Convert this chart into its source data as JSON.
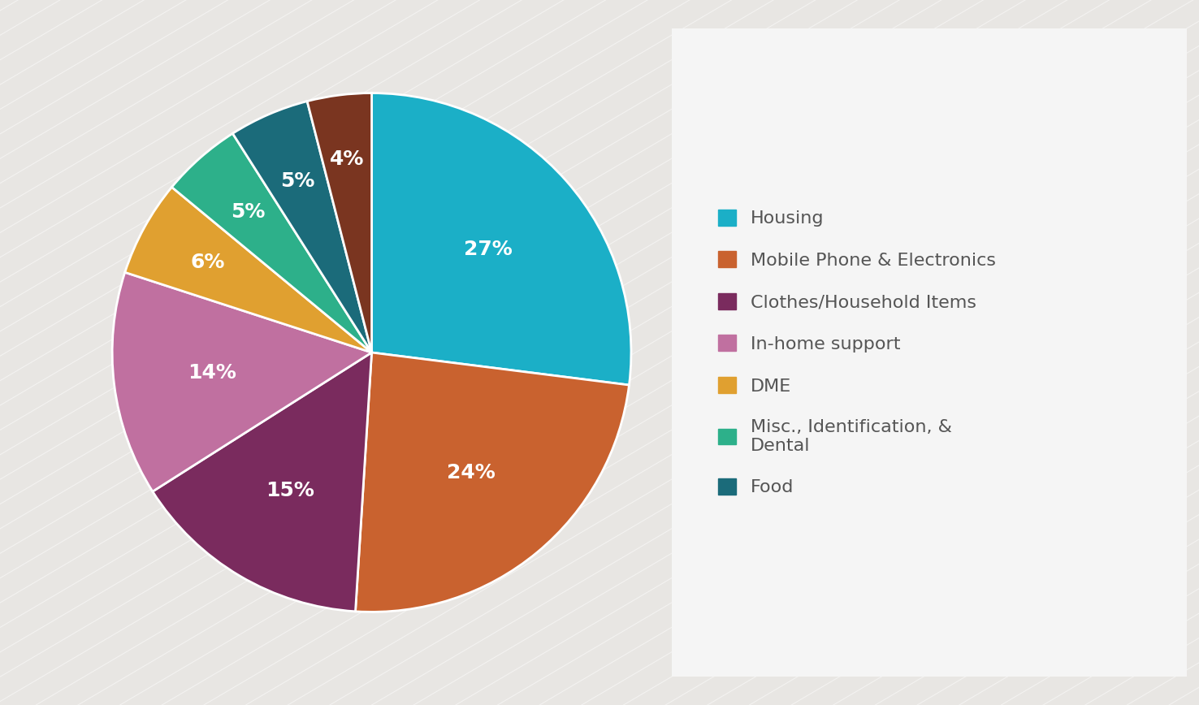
{
  "percentages": [
    27,
    24,
    15,
    14,
    6,
    5,
    5,
    4
  ],
  "colors": [
    "#1BAFC7",
    "#C9622F",
    "#7A2B5E",
    "#C070A0",
    "#E0A030",
    "#2DB08A",
    "#1B6B7A",
    "#7A3520"
  ],
  "legend_labels": [
    "Housing",
    "Mobile Phone & Electronics",
    "Clothes/Household Items",
    "In-home support",
    "DME",
    "Misc., Identification, &\nDental",
    "Food"
  ],
  "legend_colors": [
    "#1BAFC7",
    "#C9622F",
    "#7A2B5E",
    "#C070A0",
    "#E0A030",
    "#2DB08A",
    "#1B6B7A"
  ],
  "background_color": "#E8E6E3",
  "panel_color": "#F5F5F5",
  "text_color": "#FFFFFF",
  "label_fontsize": 18,
  "legend_fontsize": 16,
  "legend_text_color": "#555555"
}
